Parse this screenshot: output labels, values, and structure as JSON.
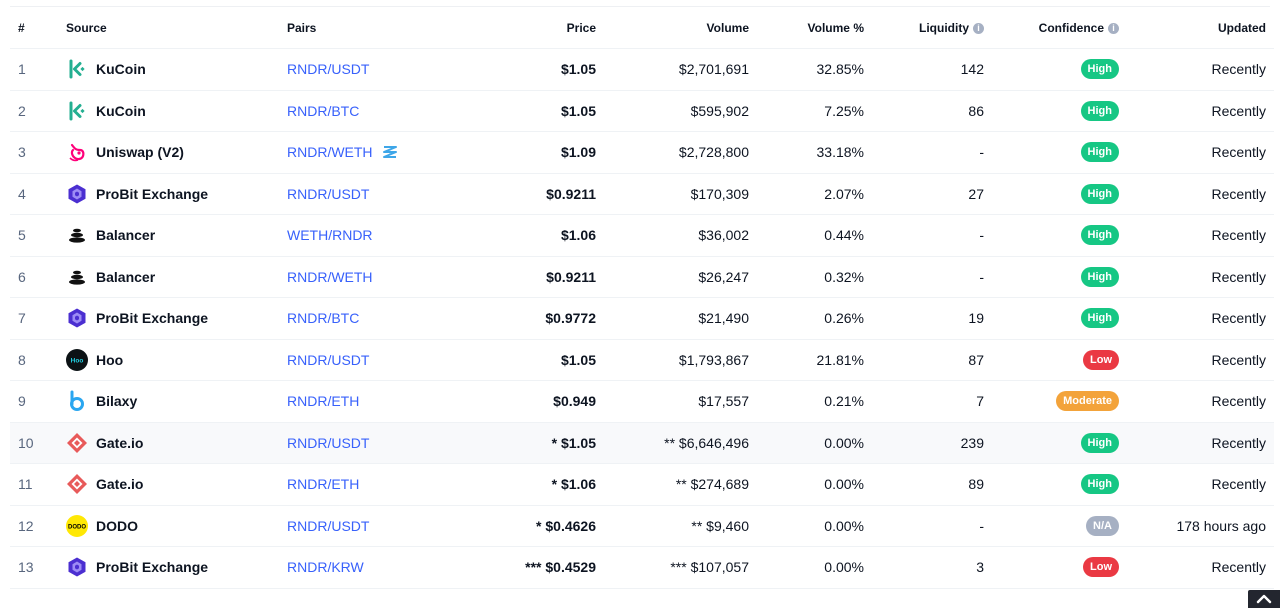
{
  "headers": {
    "rank": "#",
    "source": "Source",
    "pairs": "Pairs",
    "price": "Price",
    "volume": "Volume",
    "volume_pct": "Volume %",
    "liquidity": "Liquidity",
    "confidence": "Confidence",
    "updated": "Updated"
  },
  "info_icon_glyph": "i",
  "colors": {
    "link": "#3861fb",
    "high": "#16c784",
    "low": "#ea3943",
    "moderate": "#f3a33a",
    "na": "#a6b0c3"
  },
  "rows": [
    {
      "rank": "1",
      "source": "KuCoin",
      "logo": "kucoin-logo-icon",
      "pair": "RNDR/USDT",
      "price": "$1.05",
      "volume": "$2,701,691",
      "volume_pct": "32.85%",
      "liquidity": "142",
      "confidence": "High",
      "updated": "Recently"
    },
    {
      "rank": "2",
      "source": "KuCoin",
      "logo": "kucoin-logo-icon",
      "pair": "RNDR/BTC",
      "price": "$1.05",
      "volume": "$595,902",
      "volume_pct": "7.25%",
      "liquidity": "86",
      "confidence": "High",
      "updated": "Recently"
    },
    {
      "rank": "3",
      "source": "Uniswap (V2)",
      "logo": "uniswap-logo-icon",
      "pair": "RNDR/WETH",
      "pair_icon": "dex-pool-icon",
      "price": "$1.09",
      "volume": "$2,728,800",
      "volume_pct": "33.18%",
      "liquidity": "-",
      "confidence": "High",
      "updated": "Recently"
    },
    {
      "rank": "4",
      "source": "ProBit Exchange",
      "logo": "probit-logo-icon",
      "pair": "RNDR/USDT",
      "price": "$0.9211",
      "volume": "$170,309",
      "volume_pct": "2.07%",
      "liquidity": "27",
      "confidence": "High",
      "updated": "Recently"
    },
    {
      "rank": "5",
      "source": "Balancer",
      "logo": "balancer-logo-icon",
      "pair": "WETH/RNDR",
      "price": "$1.06",
      "volume": "$36,002",
      "volume_pct": "0.44%",
      "liquidity": "-",
      "confidence": "High",
      "updated": "Recently"
    },
    {
      "rank": "6",
      "source": "Balancer",
      "logo": "balancer-logo-icon",
      "pair": "RNDR/WETH",
      "price": "$0.9211",
      "volume": "$26,247",
      "volume_pct": "0.32%",
      "liquidity": "-",
      "confidence": "High",
      "updated": "Recently"
    },
    {
      "rank": "7",
      "source": "ProBit Exchange",
      "logo": "probit-logo-icon",
      "pair": "RNDR/BTC",
      "price": "$0.9772",
      "volume": "$21,490",
      "volume_pct": "0.26%",
      "liquidity": "19",
      "confidence": "High",
      "updated": "Recently"
    },
    {
      "rank": "8",
      "source": "Hoo",
      "logo": "hoo-logo-icon",
      "logo_text": "Hoo",
      "pair": "RNDR/USDT",
      "price": "$1.05",
      "volume": "$1,793,867",
      "volume_pct": "21.81%",
      "liquidity": "87",
      "confidence": "Low",
      "updated": "Recently"
    },
    {
      "rank": "9",
      "source": "Bilaxy",
      "logo": "bilaxy-logo-icon",
      "pair": "RNDR/ETH",
      "price": "$0.949",
      "volume": "$17,557",
      "volume_pct": "0.21%",
      "liquidity": "7",
      "confidence": "Moderate",
      "updated": "Recently"
    },
    {
      "rank": "10",
      "source": "Gate.io",
      "logo": "gateio-logo-icon",
      "pair": "RNDR/USDT",
      "price": "* $1.05",
      "volume": "** $6,646,496",
      "volume_pct": "0.00%",
      "liquidity": "239",
      "confidence": "High",
      "updated": "Recently",
      "highlight": true
    },
    {
      "rank": "11",
      "source": "Gate.io",
      "logo": "gateio-logo-icon",
      "pair": "RNDR/ETH",
      "price": "* $1.06",
      "volume": "** $274,689",
      "volume_pct": "0.00%",
      "liquidity": "89",
      "confidence": "High",
      "updated": "Recently"
    },
    {
      "rank": "12",
      "source": "DODO",
      "logo": "dodo-logo-icon",
      "logo_text": "DODO",
      "pair": "RNDR/USDT",
      "price": "* $0.4626",
      "volume": "** $9,460",
      "volume_pct": "0.00%",
      "liquidity": "-",
      "confidence": "N/A",
      "updated": "178 hours ago"
    },
    {
      "rank": "13",
      "source": "ProBit Exchange",
      "logo": "probit-logo-icon",
      "pair": "RNDR/KRW",
      "price": "*** $0.4529",
      "volume": "*** $107,057",
      "volume_pct": "0.00%",
      "liquidity": "3",
      "confidence": "Low",
      "updated": "Recently"
    }
  ],
  "scroll_top_icon": "chevron-up-icon"
}
